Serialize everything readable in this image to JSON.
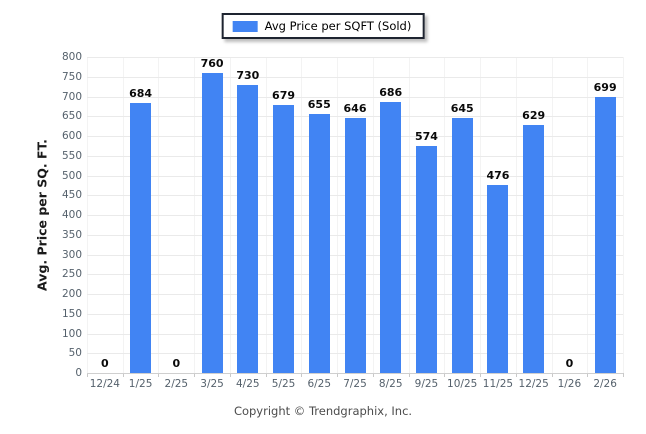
{
  "legend": {
    "label": "Avg Price per SQFT (Sold)"
  },
  "footer": {
    "copyright": "Copyright © Trendgraphix, Inc."
  },
  "colors": {
    "bar": "#4184f3",
    "grid": "#eaeaea",
    "axis_line": "#cfcfcf",
    "tick_text": "#55616c",
    "value_text": "#0a0a0a",
    "legend_border": "#1e2430"
  },
  "chart_data": {
    "type": "bar",
    "title": "",
    "categories": [
      "12/24",
      "1/25",
      "2/25",
      "3/25",
      "4/25",
      "5/25",
      "6/25",
      "7/25",
      "8/25",
      "9/25",
      "10/25",
      "11/25",
      "12/25",
      "1/26",
      "2/26"
    ],
    "values": [
      0,
      684,
      0,
      760,
      730,
      679,
      655,
      646,
      686,
      574,
      645,
      476,
      629,
      0,
      699
    ],
    "series_name": "Avg Price per SQFT (Sold)",
    "xlabel": "",
    "ylabel": "Avg. Price per SQ. FT.",
    "ylim": [
      0,
      800
    ],
    "ytick_step": 50,
    "yticks": [
      0,
      50,
      100,
      150,
      200,
      250,
      300,
      350,
      400,
      450,
      500,
      550,
      600,
      650,
      700,
      750,
      800
    ],
    "grid": true,
    "legend_position": "top-center",
    "data_labels": true
  }
}
